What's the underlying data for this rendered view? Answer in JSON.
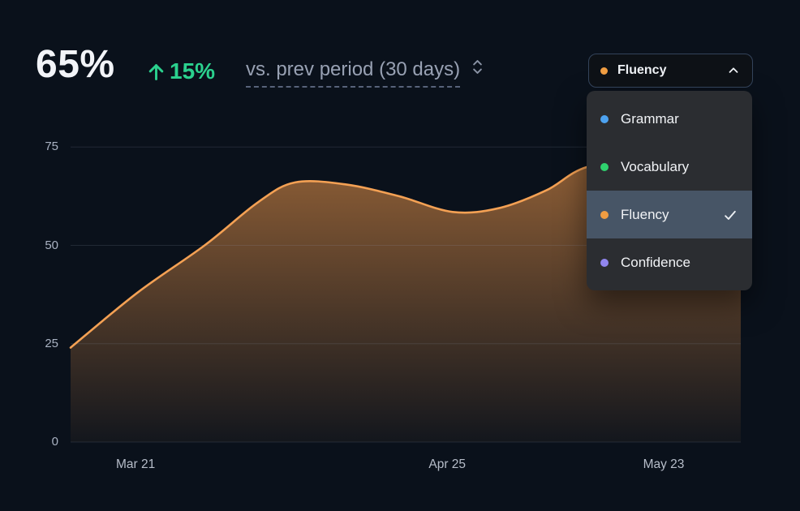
{
  "header": {
    "value": "65%",
    "delta": "15%",
    "delta_direction": "up",
    "period_label": "vs. prev period (30 days)"
  },
  "dropdown": {
    "selected": "Fluency",
    "selected_color": "#f09d42",
    "state": "open",
    "items": [
      {
        "label": "Grammar",
        "color": "#4da2f0",
        "checked": false
      },
      {
        "label": "Vocabulary",
        "color": "#2fd16e",
        "checked": false
      },
      {
        "label": "Fluency",
        "color": "#f09d42",
        "checked": true
      },
      {
        "label": "Confidence",
        "color": "#9186ef",
        "checked": false
      }
    ]
  },
  "colors": {
    "background": "#0a111b",
    "positive": "#2bd18e",
    "line": "#f4a154",
    "grid": "rgba(148,163,184,0.17)",
    "menu_highlight": "#475566"
  },
  "chart_data": {
    "type": "area",
    "title": "",
    "xlabel": "",
    "ylabel": "",
    "ylim": [
      0,
      80
    ],
    "yticks": [
      0,
      25,
      50,
      75
    ],
    "xticks": [
      {
        "label": "Mar 21",
        "x": 0.097
      },
      {
        "label": "Apr 25",
        "x": 0.562
      },
      {
        "label": "May 23",
        "x": 0.885
      }
    ],
    "grid": "horizontal",
    "legend": "dropdown-selector",
    "series": [
      {
        "name": "Fluency",
        "color": "#f4a154",
        "points": [
          {
            "x": 0.0,
            "y": 24
          },
          {
            "x": 0.1,
            "y": 38
          },
          {
            "x": 0.2,
            "y": 50
          },
          {
            "x": 0.28,
            "y": 61
          },
          {
            "x": 0.335,
            "y": 66
          },
          {
            "x": 0.41,
            "y": 65.5
          },
          {
            "x": 0.49,
            "y": 62.5
          },
          {
            "x": 0.57,
            "y": 58.5
          },
          {
            "x": 0.64,
            "y": 59.5
          },
          {
            "x": 0.71,
            "y": 64
          },
          {
            "x": 0.772,
            "y": 70
          },
          {
            "x": 0.88,
            "y": 72.5
          },
          {
            "x": 1.0,
            "y": 73
          }
        ]
      }
    ]
  }
}
